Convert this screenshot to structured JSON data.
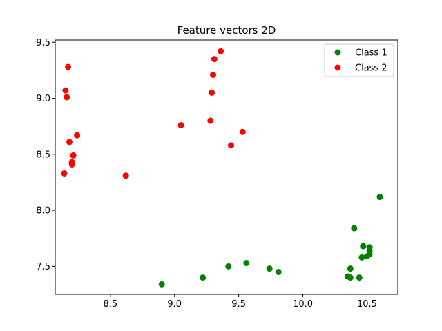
{
  "chart_data": {
    "type": "scatter",
    "title": "Feature vectors 2D",
    "xlabel": "",
    "ylabel": "",
    "xlim": [
      8.07,
      10.74
    ],
    "ylim": [
      7.25,
      9.52
    ],
    "xticks": [
      8.5,
      9.0,
      9.5,
      10.0,
      10.5
    ],
    "xtick_labels": [
      "8.5",
      "9.0",
      "9.5",
      "10.0",
      "10.5"
    ],
    "yticks": [
      7.5,
      8.0,
      8.5,
      9.0,
      9.5
    ],
    "ytick_labels": [
      "7.5",
      "8.0",
      "8.5",
      "9.0",
      "9.5"
    ],
    "grid": false,
    "legend_position": "top-right",
    "series": [
      {
        "name": "Class 1",
        "color": "#008000",
        "points": [
          [
            8.9,
            7.34
          ],
          [
            9.22,
            7.4
          ],
          [
            9.42,
            7.5
          ],
          [
            9.56,
            7.53
          ],
          [
            9.74,
            7.48
          ],
          [
            9.81,
            7.45
          ],
          [
            10.35,
            7.41
          ],
          [
            10.37,
            7.4
          ],
          [
            10.37,
            7.48
          ],
          [
            10.4,
            7.84
          ],
          [
            10.44,
            7.4
          ],
          [
            10.46,
            7.58
          ],
          [
            10.47,
            7.68
          ],
          [
            10.5,
            7.59
          ],
          [
            10.52,
            7.61
          ],
          [
            10.52,
            7.64
          ],
          [
            10.52,
            7.67
          ],
          [
            10.6,
            8.12
          ]
        ]
      },
      {
        "name": "Class 2",
        "color": "#ff0000",
        "points": [
          [
            8.14,
            8.33
          ],
          [
            8.15,
            9.07
          ],
          [
            8.16,
            9.01
          ],
          [
            8.17,
            9.28
          ],
          [
            8.18,
            8.61
          ],
          [
            8.2,
            8.41
          ],
          [
            8.2,
            8.43
          ],
          [
            8.21,
            8.49
          ],
          [
            8.24,
            8.67
          ],
          [
            8.62,
            8.31
          ],
          [
            9.05,
            8.76
          ],
          [
            9.28,
            8.8
          ],
          [
            9.29,
            9.05
          ],
          [
            9.3,
            9.21
          ],
          [
            9.31,
            9.35
          ],
          [
            9.36,
            9.42
          ],
          [
            9.44,
            8.58
          ],
          [
            9.53,
            8.7
          ]
        ]
      }
    ]
  }
}
